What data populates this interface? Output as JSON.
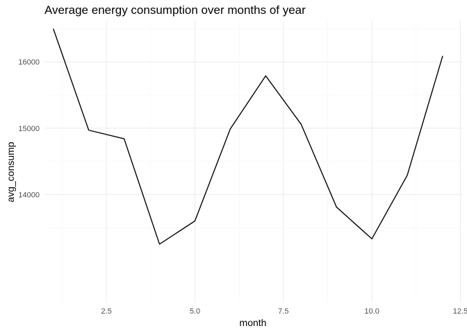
{
  "chart_data": {
    "type": "line",
    "title": "Average energy consumption over months of year",
    "xlabel": "month",
    "ylabel": "avg_consump",
    "xlim": [
      0.75,
      12.55
    ],
    "ylim": [
      12370,
      16620
    ],
    "x_ticks": [
      2.5,
      5.0,
      7.5,
      10.0,
      12.5
    ],
    "x_tick_labels": [
      "2.5",
      "5.0",
      "7.5",
      "10.0",
      "12.5"
    ],
    "y_ticks": [
      14000,
      15000,
      16000
    ],
    "y_tick_labels": [
      "14000",
      "15000",
      "16000"
    ],
    "grid": true,
    "legend": "none",
    "line_color": "#000000",
    "series": [
      {
        "x": [
          1,
          2,
          3,
          4,
          5,
          6,
          7,
          8,
          9,
          10,
          11,
          12
        ],
        "values": [
          16500,
          14970,
          14840,
          13250,
          13600,
          14990,
          15790,
          15060,
          13810,
          13330,
          14290,
          16090
        ]
      }
    ]
  }
}
